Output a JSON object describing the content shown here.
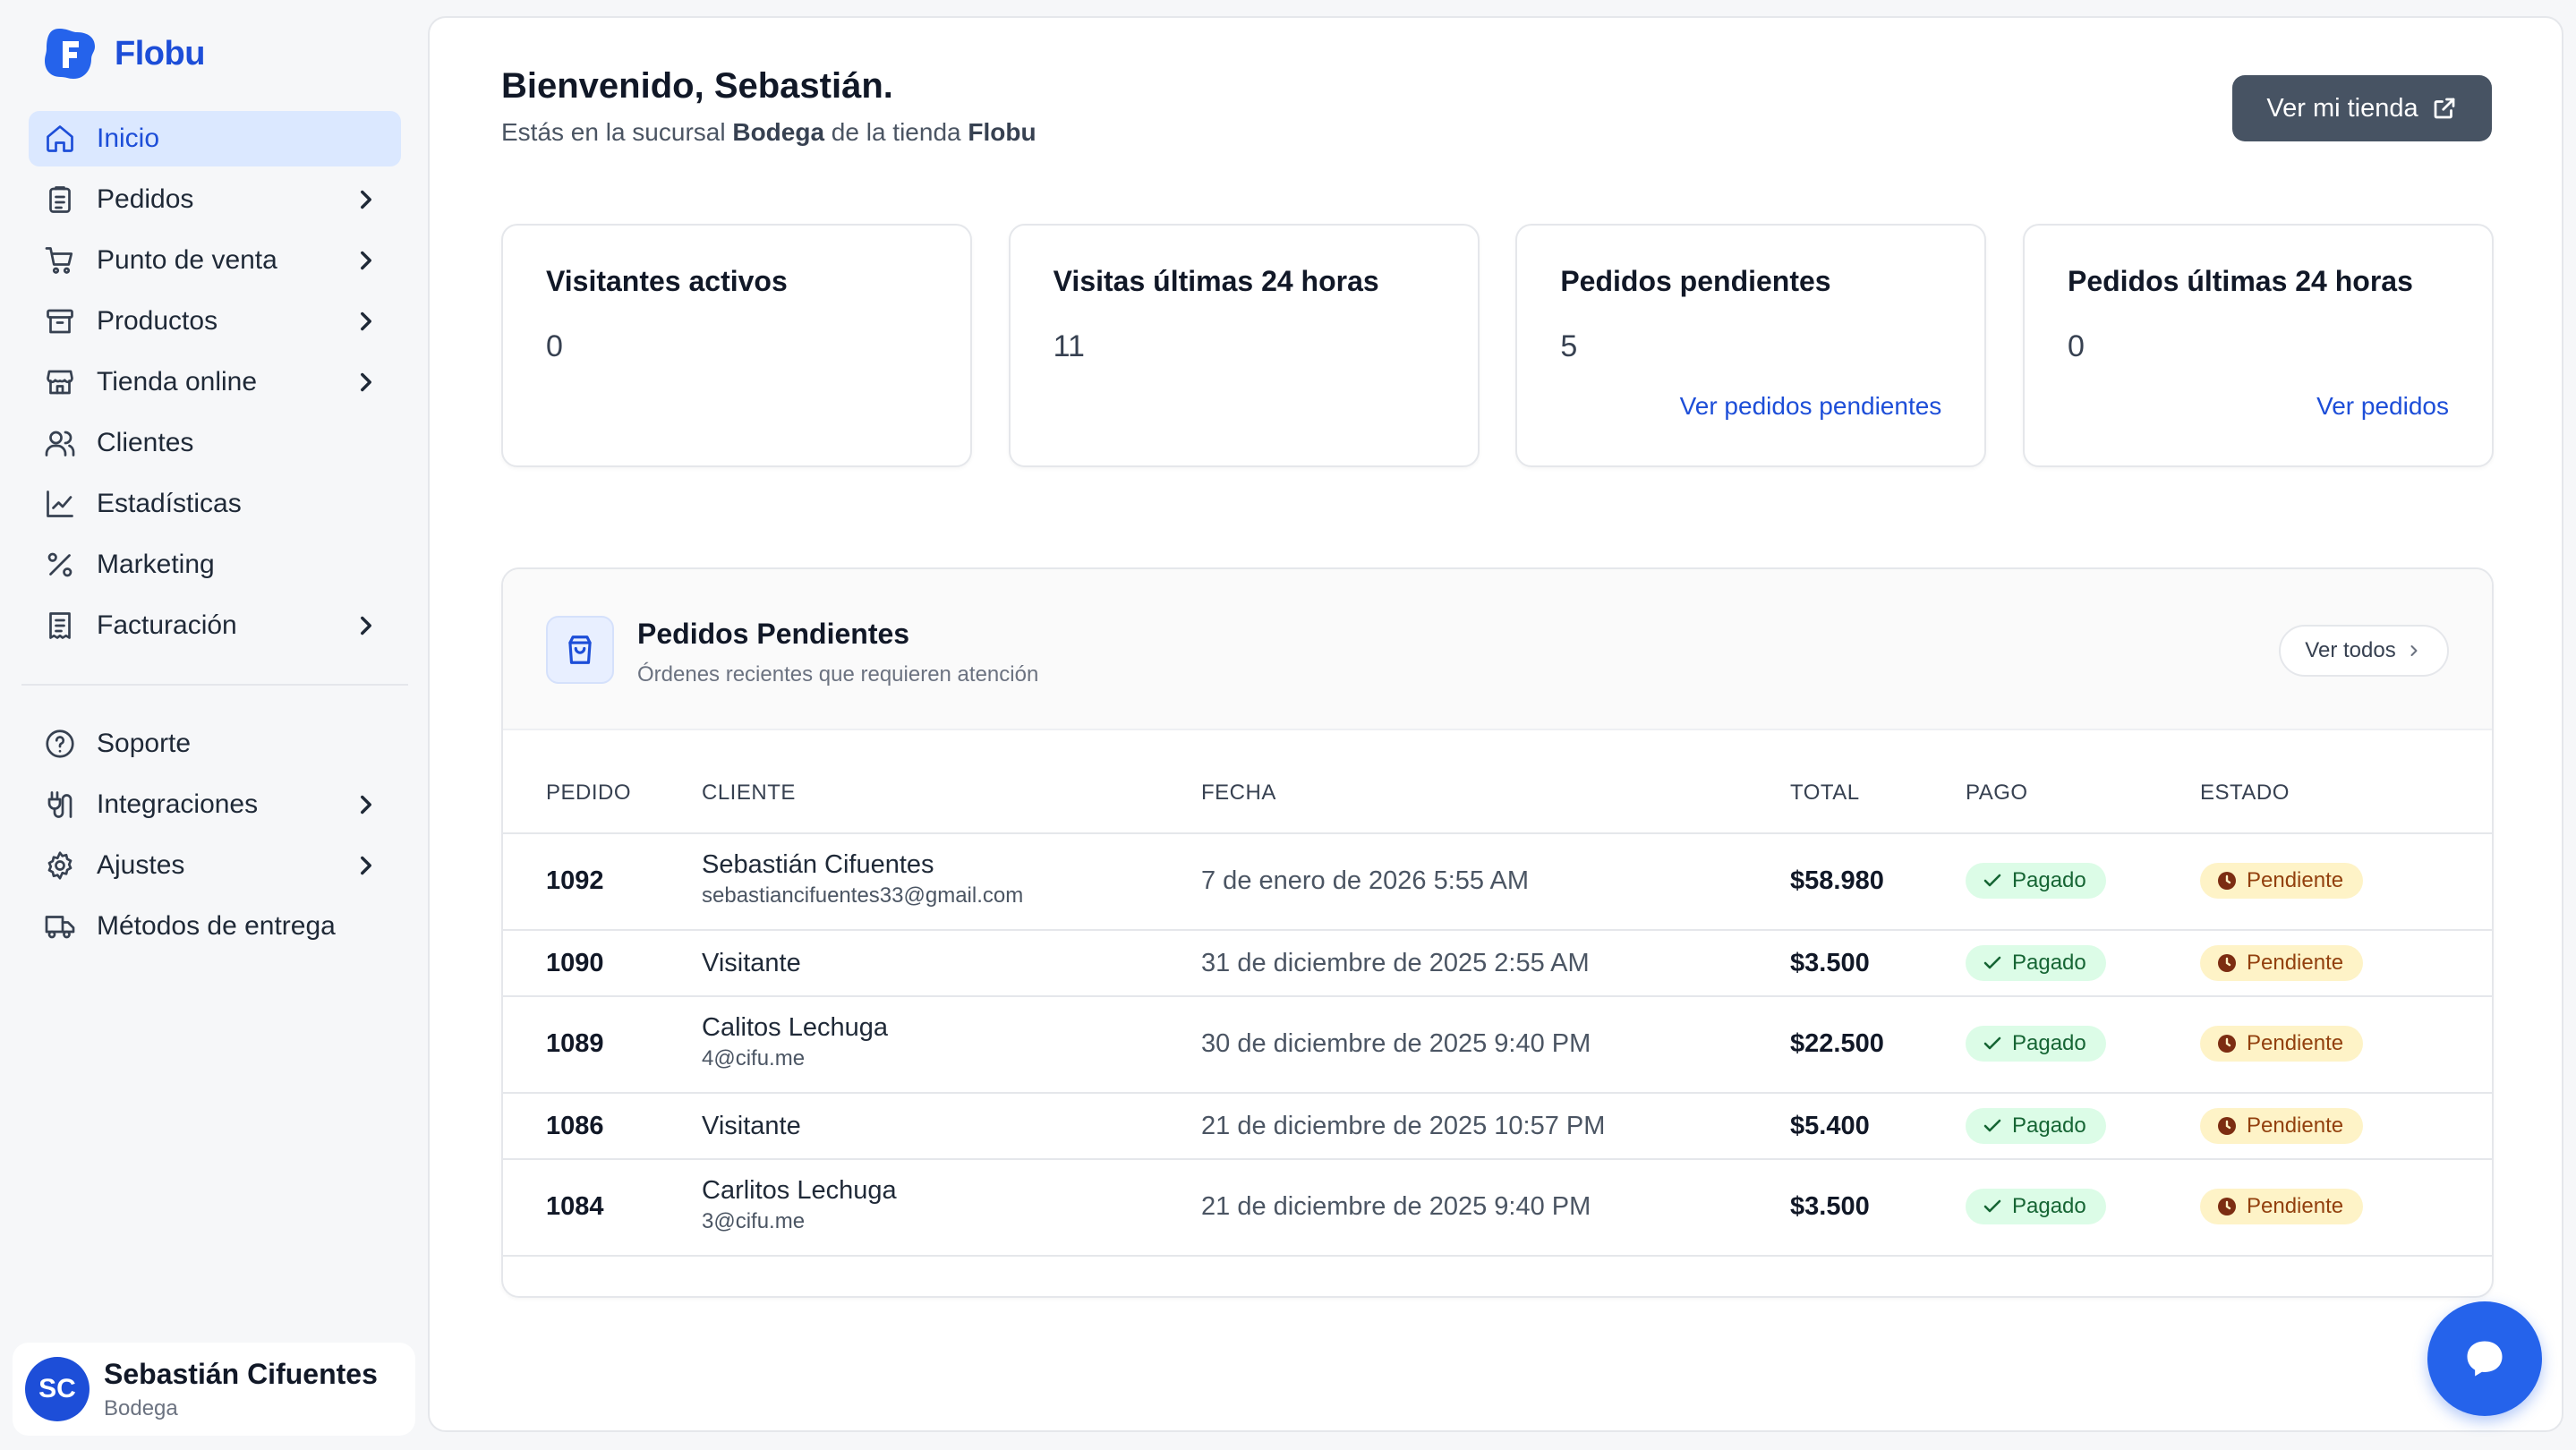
{
  "brand": {
    "name": "Flobu",
    "accent": "#1d4ed8"
  },
  "sidebar": {
    "items": [
      {
        "label": "Inicio",
        "icon": "home-icon",
        "active": true,
        "expandable": false
      },
      {
        "label": "Pedidos",
        "icon": "clipboard-list-icon",
        "active": false,
        "expandable": true
      },
      {
        "label": "Punto de venta",
        "icon": "cart-icon",
        "active": false,
        "expandable": true
      },
      {
        "label": "Productos",
        "icon": "archive-icon",
        "active": false,
        "expandable": true
      },
      {
        "label": "Tienda online",
        "icon": "store-icon",
        "active": false,
        "expandable": true
      },
      {
        "label": "Clientes",
        "icon": "users-icon",
        "active": false,
        "expandable": false
      },
      {
        "label": "Estadísticas",
        "icon": "chart-line-icon",
        "active": false,
        "expandable": false
      },
      {
        "label": "Marketing",
        "icon": "percent-icon",
        "active": false,
        "expandable": false
      },
      {
        "label": "Facturación",
        "icon": "receipt-icon",
        "active": false,
        "expandable": true
      }
    ],
    "secondary": [
      {
        "label": "Soporte",
        "icon": "help-circle-icon",
        "expandable": false
      },
      {
        "label": "Integraciones",
        "icon": "plug-icon",
        "expandable": true
      },
      {
        "label": "Ajustes",
        "icon": "gear-icon",
        "expandable": true
      },
      {
        "label": "Métodos de entrega",
        "icon": "truck-icon",
        "expandable": false
      }
    ],
    "user": {
      "initials": "SC",
      "name": "Sebastián Cifuentes",
      "branch": "Bodega"
    }
  },
  "header": {
    "title": "Bienvenido, Sebastián.",
    "subtitle_pre": "Estás en la sucursal ",
    "branch": "Bodega",
    "subtitle_mid": " de la tienda ",
    "store": "Flobu",
    "store_button": "Ver mi tienda"
  },
  "stats": [
    {
      "title": "Visitantes activos",
      "value": "0",
      "link": ""
    },
    {
      "title": "Visitas últimas 24 horas",
      "value": "11",
      "link": ""
    },
    {
      "title": "Pedidos pendientes",
      "value": "5",
      "link": "Ver pedidos pendientes"
    },
    {
      "title": "Pedidos últimas 24 horas",
      "value": "0",
      "link": "Ver pedidos"
    }
  ],
  "orders": {
    "title": "Pedidos Pendientes",
    "subtitle": "Órdenes recientes que requieren atención",
    "see_all": "Ver todos",
    "columns": [
      "PEDIDO",
      "CLIENTE",
      "FECHA",
      "TOTAL",
      "PAGO",
      "ESTADO"
    ],
    "rows": [
      {
        "id": "1092",
        "name": "Sebastián Cifuentes",
        "email": "sebastiancifuentes33@gmail.com",
        "date": "7 de enero de 2026 5:55 AM",
        "total": "$58.980",
        "payment": "Pagado",
        "status": "Pendiente"
      },
      {
        "id": "1090",
        "name": "Visitante",
        "email": "",
        "date": "31 de diciembre de 2025 2:55 AM",
        "total": "$3.500",
        "payment": "Pagado",
        "status": "Pendiente"
      },
      {
        "id": "1089",
        "name": "Calitos Lechuga",
        "email": "4@cifu.me",
        "date": "30 de diciembre de 2025 9:40 PM",
        "total": "$22.500",
        "payment": "Pagado",
        "status": "Pendiente"
      },
      {
        "id": "1086",
        "name": "Visitante",
        "email": "",
        "date": "21 de diciembre de 2025 10:57 PM",
        "total": "$5.400",
        "payment": "Pagado",
        "status": "Pendiente"
      },
      {
        "id": "1084",
        "name": "Carlitos Lechuga",
        "email": "3@cifu.me",
        "date": "21 de diciembre de 2025 9:40 PM",
        "total": "$3.500",
        "payment": "Pagado",
        "status": "Pendiente"
      }
    ]
  },
  "chat": {
    "icon": "chat-bubble-icon",
    "color": "#2563eb"
  }
}
